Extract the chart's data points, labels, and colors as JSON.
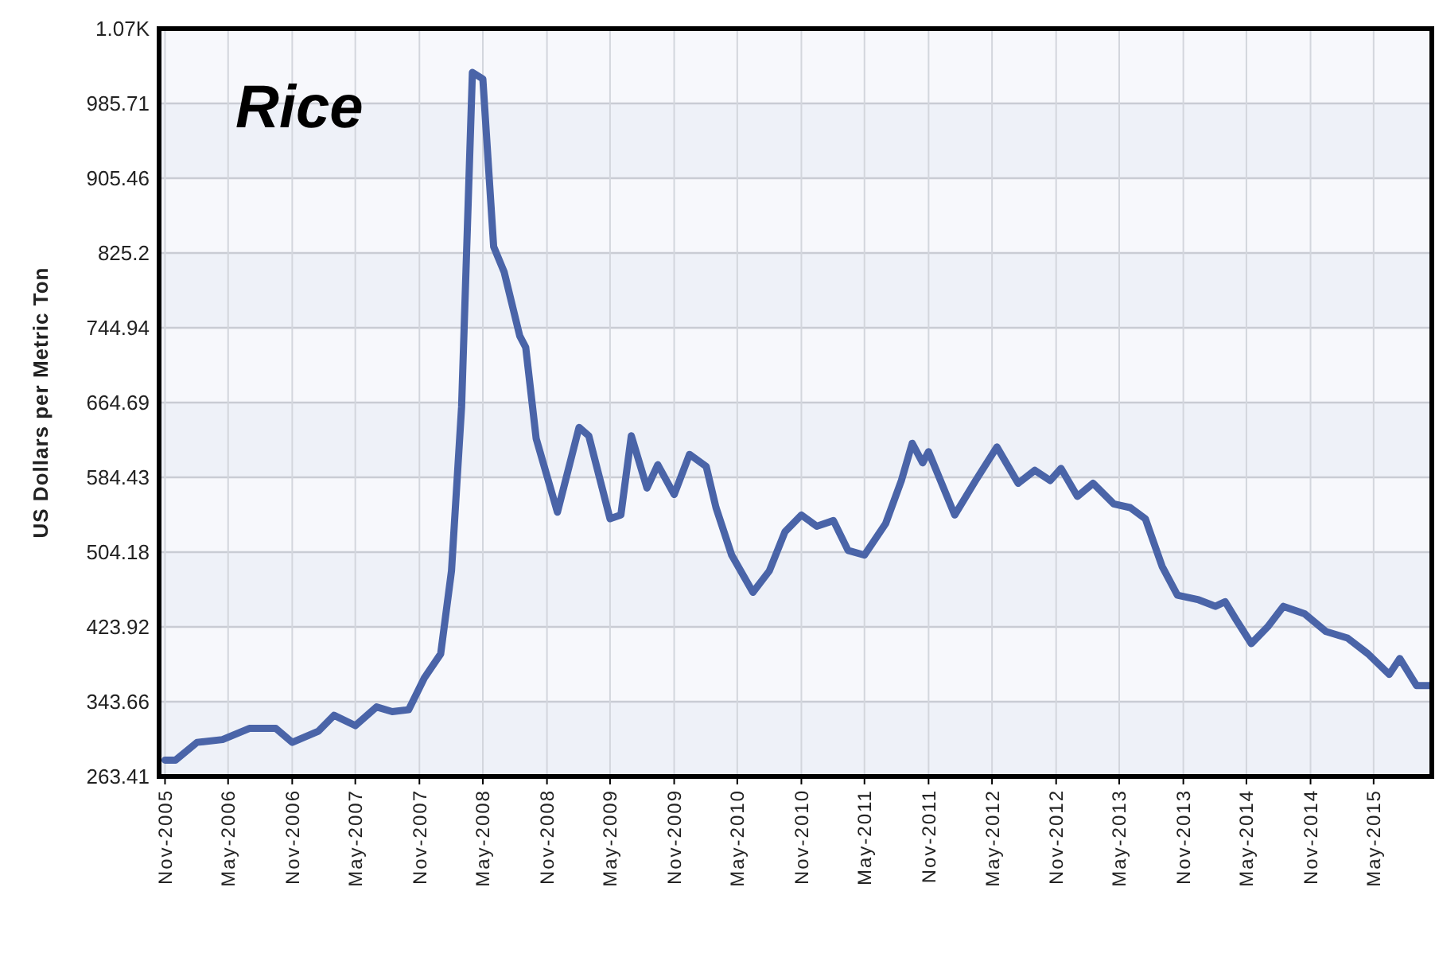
{
  "chart_data": {
    "type": "line",
    "title": "Rice",
    "ylabel": "US Dollars per Metric Ton",
    "xlim": [
      "2005-10-15",
      "2015-10-15"
    ],
    "xticks": [
      {
        "value": "2005-11",
        "label": "Nov-2005"
      },
      {
        "value": "2006-05",
        "label": "May-2006"
      },
      {
        "value": "2006-11",
        "label": "Nov-2006"
      },
      {
        "value": "2007-05",
        "label": "May-2007"
      },
      {
        "value": "2007-11",
        "label": "Nov-2007"
      },
      {
        "value": "2008-05",
        "label": "May-2008"
      },
      {
        "value": "2008-11",
        "label": "Nov-2008"
      },
      {
        "value": "2009-05",
        "label": "May-2009"
      },
      {
        "value": "2009-11",
        "label": "Nov-2009"
      },
      {
        "value": "2010-05",
        "label": "May-2010"
      },
      {
        "value": "2010-11",
        "label": "Nov-2010"
      },
      {
        "value": "2011-05",
        "label": "May-2011"
      },
      {
        "value": "2011-11",
        "label": "Nov-2011"
      },
      {
        "value": "2012-05",
        "label": "May-2012"
      },
      {
        "value": "2012-11",
        "label": "Nov-2012"
      },
      {
        "value": "2013-05",
        "label": "May-2013"
      },
      {
        "value": "2013-11",
        "label": "Nov-2013"
      },
      {
        "value": "2014-05",
        "label": "May-2014"
      },
      {
        "value": "2014-11",
        "label": "Nov-2014"
      },
      {
        "value": "2015-05",
        "label": "May-2015"
      }
    ],
    "ylim": [
      263.41,
      1065.97
    ],
    "yticks": [
      263.41,
      343.66,
      423.92,
      504.18,
      584.43,
      664.69,
      744.94,
      825.2,
      905.46,
      985.71,
      {
        "value": 1065.97,
        "label": "1.07K"
      }
    ],
    "grid": true,
    "marker": "none",
    "line_style": "solid",
    "x": [
      "2005-11-01",
      "2005-12-01",
      "2006-02-01",
      "2006-04-15",
      "2006-07-01",
      "2006-09-15",
      "2006-11-01",
      "2007-01-15",
      "2007-03-01",
      "2007-05-01",
      "2007-07-01",
      "2007-08-15",
      "2007-10-01",
      "2007-11-15",
      "2008-01-01",
      "2008-02-01",
      "2008-03-01",
      "2008-04-01",
      "2008-05-01",
      "2008-06-01",
      "2008-07-01",
      "2008-08-15",
      "2008-09-01",
      "2008-10-01",
      "2008-12-01",
      "2009-02-01",
      "2009-03-01",
      "2009-05-01",
      "2009-06-01",
      "2009-07-01",
      "2009-08-15",
      "2009-09-15",
      "2009-11-01",
      "2009-12-15",
      "2010-02-01",
      "2010-03-01",
      "2010-04-15",
      "2010-06-15",
      "2010-08-01",
      "2010-09-15",
      "2010-11-01",
      "2010-12-15",
      "2011-02-01",
      "2011-03-15",
      "2011-05-01",
      "2011-07-01",
      "2011-08-15",
      "2011-09-15",
      "2011-10-15",
      "2011-11-01",
      "2012-01-15",
      "2012-03-15",
      "2012-05-15",
      "2012-07-15",
      "2012-09-01",
      "2012-10-15",
      "2012-11-15",
      "2013-01-01",
      "2013-02-15",
      "2013-04-15",
      "2013-06-01",
      "2013-07-15",
      "2013-09-01",
      "2013-10-15",
      "2013-12-15",
      "2014-02-01",
      "2014-03-01",
      "2014-04-01",
      "2014-05-15",
      "2014-07-01",
      "2014-08-15",
      "2014-10-15",
      "2014-12-15",
      "2015-02-15",
      "2015-04-15",
      "2015-06-15",
      "2015-07-15",
      "2015-09-01",
      "2015-10-10"
    ],
    "series": [
      {
        "color": "#4a64a8",
        "values": [
          281,
          281,
          300,
          303,
          315,
          315,
          300,
          312,
          329,
          318,
          338,
          333,
          335,
          369,
          395,
          484,
          660,
          1019,
          1012,
          832,
          805,
          736,
          724,
          626,
          547,
          638,
          629,
          540,
          544,
          629,
          573,
          598,
          566,
          609,
          596,
          552,
          501,
          461,
          484,
          526,
          544,
          532,
          538,
          506,
          501,
          535,
          581,
          621,
          600,
          612,
          544,
          581,
          617,
          578,
          592,
          581,
          594,
          564,
          578,
          556,
          552,
          540,
          489,
          458,
          453,
          446,
          451,
          432,
          406,
          424,
          446,
          438,
          419,
          412,
          395,
          373,
          390,
          361,
          361
        ]
      }
    ]
  }
}
